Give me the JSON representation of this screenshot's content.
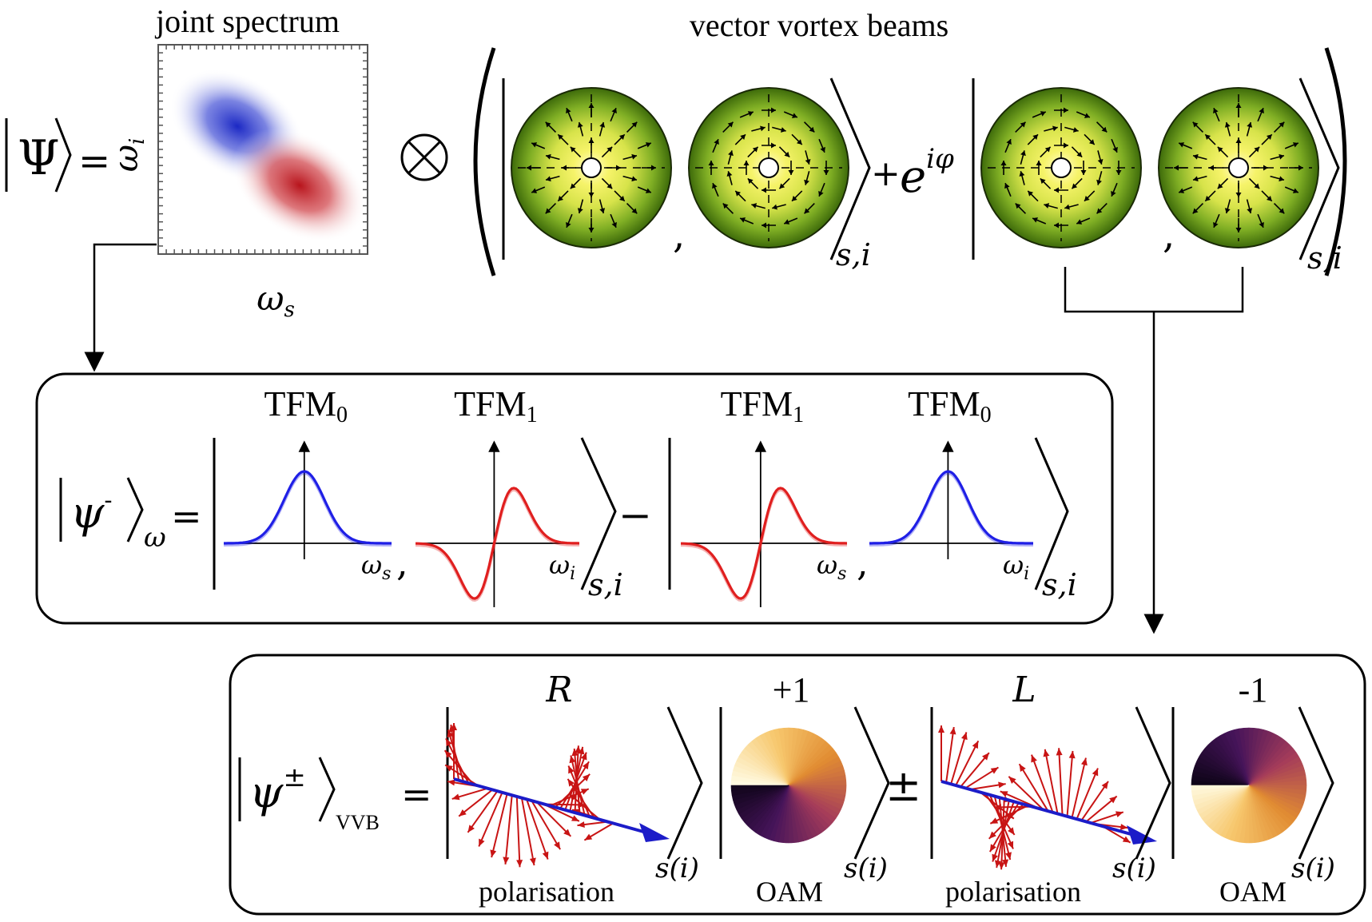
{
  "top": {
    "joint_spectrum_title": "joint spectrum",
    "vvb_title": "vector vortex beams",
    "psi_label": "Ψ",
    "equals": "=",
    "omega_i_axis": "ω",
    "omega_i_sub": "i",
    "omega_s_axis": "ω",
    "omega_s_sub": "s",
    "tensor": "⊗",
    "plus": "+",
    "phase_base": "e",
    "phase_exp": "iφ",
    "comma": ",",
    "ket_sub": "s,i"
  },
  "tfm_box": {
    "state": "ψ",
    "state_sup": "-",
    "state_sub": "ω",
    "equals": "=",
    "minus": "−",
    "comma": ",",
    "ket_sub": "s,i",
    "panels": [
      {
        "label": "TFM",
        "label_sub": "0",
        "axis": "ω",
        "axis_sub": "s",
        "color": "#1f1fe6",
        "order": 0
      },
      {
        "label": "TFM",
        "label_sub": "1",
        "axis": "ω",
        "axis_sub": "i",
        "color": "#e01f1f",
        "order": 1
      },
      {
        "label": "TFM",
        "label_sub": "1",
        "axis": "ω",
        "axis_sub": "s",
        "color": "#e01f1f",
        "order": 1
      },
      {
        "label": "TFM",
        "label_sub": "0",
        "axis": "ω",
        "axis_sub": "i",
        "color": "#1f1fe6",
        "order": 0
      }
    ]
  },
  "vvb_box": {
    "state": "ψ",
    "state_sup": "±",
    "state_sub": "VVB",
    "equals": "=",
    "pm": "±",
    "ket_sub": "s(i)",
    "items": [
      {
        "top": "R",
        "bottom": "polarisation",
        "kind": "pol",
        "handed": "R"
      },
      {
        "top": "+1",
        "bottom": "OAM",
        "kind": "oam",
        "charge": 1
      },
      {
        "top": "L",
        "bottom": "polarisation",
        "kind": "pol",
        "handed": "L"
      },
      {
        "top": "-1",
        "bottom": "OAM",
        "kind": "oam",
        "charge": -1
      }
    ]
  },
  "colors": {
    "blue": "#1f1fe6",
    "red": "#e01f1f",
    "beam_green": "#5a8a10",
    "beam_yellow": "#f4f46a",
    "arrow_red": "#c81414",
    "arrow_blue": "#1c1cc8"
  }
}
